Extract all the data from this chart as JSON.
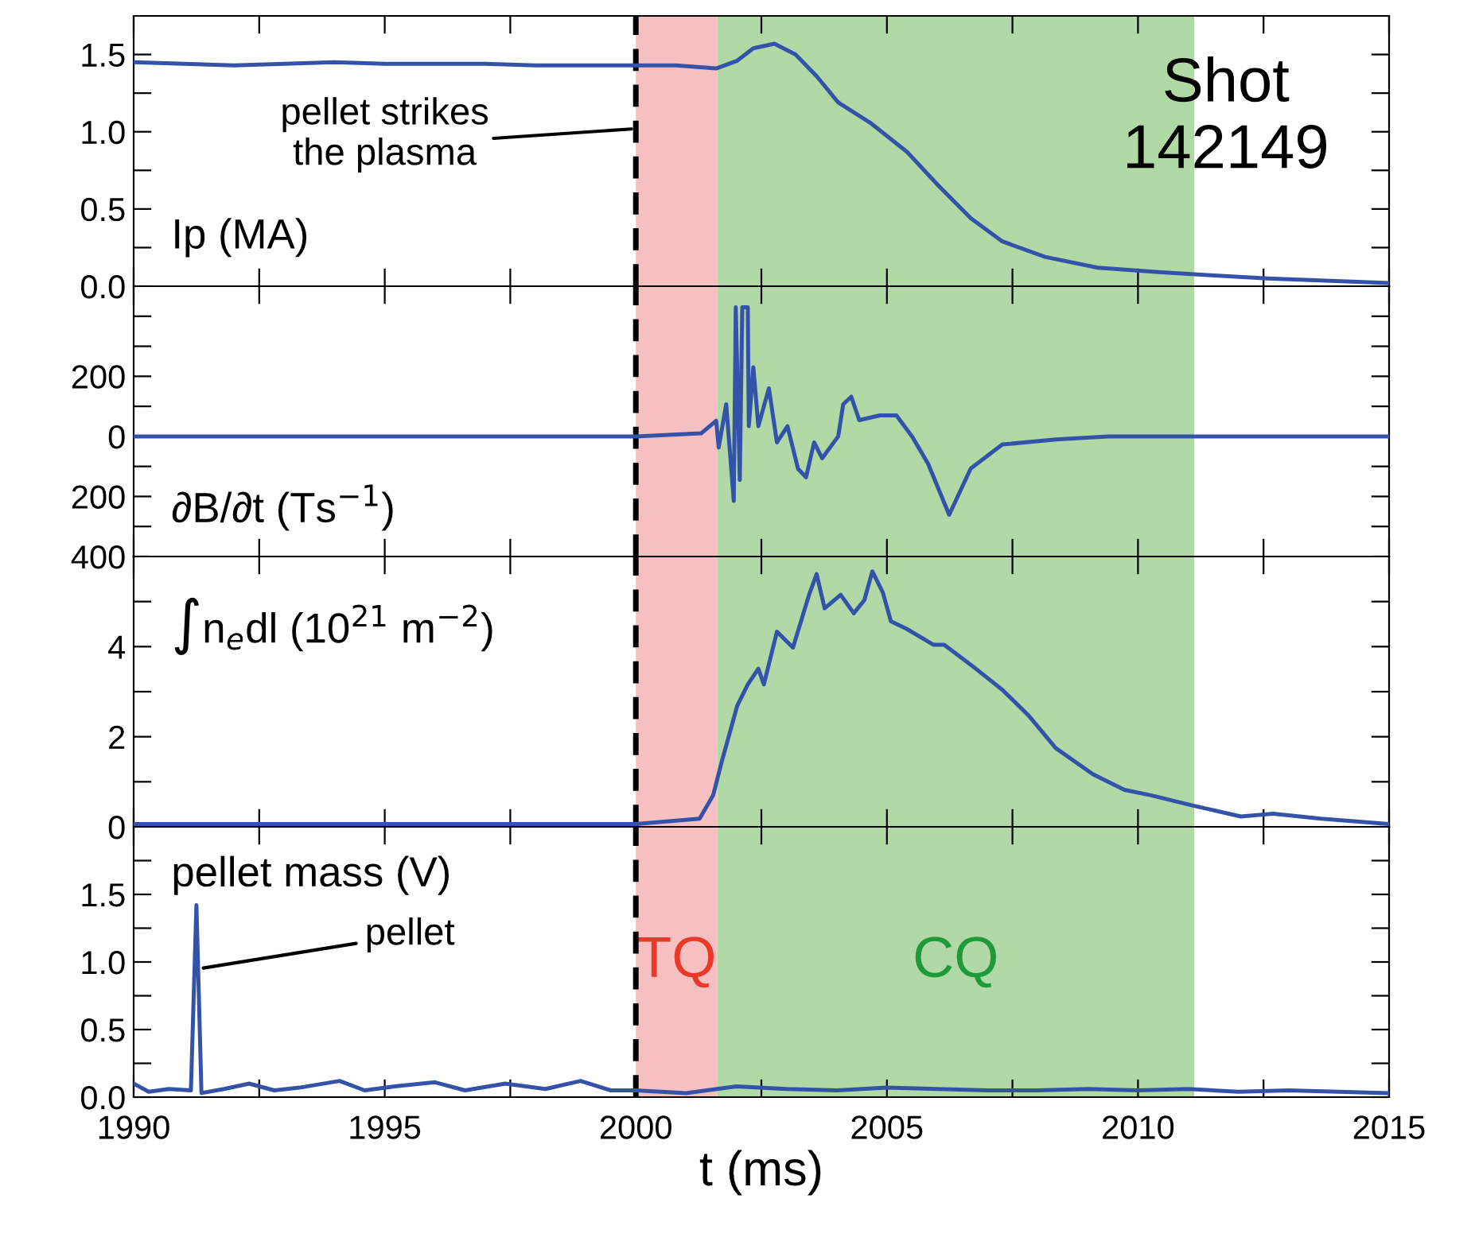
{
  "chart_data": [
    {
      "type": "line",
      "ylabel": "Ip (MA)",
      "xlim": [
        1990,
        2015
      ],
      "ylim": [
        0,
        1.75
      ],
      "xticks": [
        1990,
        {
          "value": 1992.5,
          "label": null
        },
        1995,
        {
          "value": 1997.5,
          "label": null
        },
        2000,
        {
          "value": 2002.5,
          "label": null
        },
        2005,
        {
          "value": 2007.5,
          "label": null
        },
        2010,
        {
          "value": 2012.5,
          "label": null
        },
        2015
      ],
      "yticks": [
        {
          "value": 0,
          "label": "0.0"
        },
        {
          "value": 0.25,
          "label": null
        },
        {
          "value": 0.5,
          "label": "0.5"
        },
        {
          "value": 0.75,
          "label": null
        },
        {
          "value": 1.0,
          "label": "1.0"
        },
        {
          "value": 1.25,
          "label": null
        },
        {
          "value": 1.5,
          "label": "1.5"
        }
      ],
      "tick_labels": "y",
      "grid": false,
      "legend": false,
      "series": [
        {
          "color": "#3453a8",
          "x": [
            1990,
            1991,
            1992,
            1993,
            1994,
            1995,
            1996,
            1997,
            1998,
            1999,
            2000,
            2000.8,
            2001.6,
            2002.02,
            2002.34,
            2002.76,
            2003.18,
            2003.6,
            2004.03,
            2004.66,
            2005.4,
            2006.03,
            2006.67,
            2007.3,
            2008.15,
            2009.2,
            2010.47,
            2011.52,
            2012.58,
            2015
          ],
          "values": [
            1.45,
            1.44,
            1.43,
            1.44,
            1.45,
            1.44,
            1.44,
            1.44,
            1.43,
            1.43,
            1.43,
            1.43,
            1.41,
            1.46,
            1.54,
            1.57,
            1.5,
            1.36,
            1.19,
            1.06,
            0.87,
            0.65,
            0.44,
            0.29,
            0.19,
            0.12,
            0.09,
            0.07,
            0.05,
            0.02
          ]
        }
      ],
      "ref_lines": [
        {
          "axis": "x",
          "value": 2000,
          "color": "#000000",
          "line_style": "dashed"
        }
      ],
      "bands": [
        {
          "axis": "x",
          "from": 2000,
          "to": 2001.62,
          "color": "#f6c0c0"
        },
        {
          "axis": "x",
          "from": 2001.62,
          "to": 2011.12,
          "color": "#b1d9a6"
        }
      ],
      "annotations": [
        {
          "text": "pellet strikes\nthe plasma",
          "x": 2000,
          "y": 1.02
        },
        "Shot\n142149"
      ]
    },
    {
      "type": "line",
      "ylabel": "∂B/∂t (Ts$^{−1}$)",
      "xlim": [
        1990,
        2015
      ],
      "ylim": [
        -400,
        500
      ],
      "xticks": [
        1990,
        {
          "value": 1992.5,
          "label": null
        },
        1995,
        {
          "value": 1997.5,
          "label": null
        },
        2000,
        {
          "value": 2002.5,
          "label": null
        },
        2005,
        {
          "value": 2007.5,
          "label": null
        },
        2010,
        {
          "value": 2012.5,
          "label": null
        },
        2015
      ],
      "yticks": [
        {
          "value": -400,
          "label": "400"
        },
        {
          "value": -300,
          "label": null
        },
        {
          "value": -200,
          "label": "200"
        },
        {
          "value": -100,
          "label": null
        },
        0,
        {
          "value": 100,
          "label": null
        },
        200,
        {
          "value": 300,
          "label": null
        },
        {
          "value": 400,
          "label": null
        }
      ],
      "tick_labels": "y",
      "grid": false,
      "legend": false,
      "series": [
        {
          "color": "#3453a8",
          "x": [
            1990,
            1995,
            2000,
            2001.3,
            2001.6,
            2001.65,
            2001.8,
            2001.95,
            2001.99,
            2002.07,
            2002.12,
            2002.23,
            2002.25,
            2002.34,
            2002.44,
            2002.65,
            2002.81,
            2003.02,
            2003.23,
            2003.39,
            2003.55,
            2003.71,
            2004.03,
            2004.13,
            2004.29,
            2004.45,
            2004.86,
            2005.19,
            2005.5,
            2005.82,
            2006.24,
            2006.67,
            2007.3,
            2008.37,
            2009.4,
            2015
          ],
          "values": [
            0,
            0,
            0,
            10,
            52,
            -37,
            107,
            -215,
            430,
            -145,
            430,
            430,
            34,
            230,
            34,
            160,
            -20,
            34,
            -108,
            -136,
            -20,
            -73,
            0,
            107,
            132,
            54,
            70,
            70,
            0,
            -91,
            -261,
            -107,
            -27,
            -10,
            0,
            0
          ]
        }
      ],
      "ref_lines": [
        {
          "axis": "x",
          "value": 2000,
          "color": "#000000",
          "line_style": "dashed"
        }
      ],
      "bands": [
        {
          "axis": "x",
          "from": 2000,
          "to": 2001.62,
          "color": "#f6c0c0"
        },
        {
          "axis": "x",
          "from": 2001.62,
          "to": 2011.12,
          "color": "#b1d9a6"
        }
      ]
    },
    {
      "type": "line",
      "ylabel": "∫n$_{e}$dl (10$^{21}$ m$^{−2}$)",
      "xlim": [
        1990,
        2015
      ],
      "ylim": [
        0,
        6
      ],
      "xticks": [
        1990,
        {
          "value": 1992.5,
          "label": null
        },
        1995,
        {
          "value": 1997.5,
          "label": null
        },
        2000,
        {
          "value": 2002.5,
          "label": null
        },
        2005,
        {
          "value": 2007.5,
          "label": null
        },
        2010,
        {
          "value": 2012.5,
          "label": null
        },
        2015
      ],
      "yticks": [
        0,
        {
          "value": 1,
          "label": null
        },
        2,
        {
          "value": 3,
          "label": null
        },
        4,
        {
          "value": 5,
          "label": null
        }
      ],
      "tick_labels": "y",
      "grid": false,
      "legend": false,
      "series": [
        {
          "color": "#3453a8",
          "x": [
            1990,
            1995,
            2000,
            2001.27,
            2001.54,
            2001.7,
            2002.02,
            2002.23,
            2002.44,
            2002.55,
            2002.81,
            2003.13,
            2003.45,
            2003.6,
            2003.76,
            2004.08,
            2004.34,
            2004.55,
            2004.71,
            2004.92,
            2005.08,
            2005.4,
            2005.93,
            2006.14,
            2006.77,
            2007.3,
            2007.83,
            2008.36,
            2009.1,
            2009.73,
            2010.26,
            2011.1,
            2012.05,
            2012.69,
            2013.64,
            2015
          ],
          "values": [
            0.06,
            0.06,
            0.06,
            0.18,
            0.7,
            1.4,
            2.69,
            3.16,
            3.51,
            3.16,
            4.33,
            3.98,
            5.15,
            5.61,
            4.85,
            5.15,
            4.74,
            5.03,
            5.67,
            5.2,
            4.56,
            4.39,
            4.04,
            4.04,
            3.51,
            3.04,
            2.46,
            1.75,
            1.17,
            0.82,
            0.7,
            0.47,
            0.23,
            0.29,
            0.18,
            0.06
          ]
        }
      ],
      "ref_lines": [
        {
          "axis": "x",
          "value": 2000,
          "color": "#000000",
          "line_style": "dashed"
        }
      ],
      "bands": [
        {
          "axis": "x",
          "from": 2000,
          "to": 2001.62,
          "color": "#f6c0c0"
        },
        {
          "axis": "x",
          "from": 2001.62,
          "to": 2011.12,
          "color": "#b1d9a6"
        }
      ]
    },
    {
      "type": "line",
      "ylabel": "pellet mass (V)",
      "xlabel": "t (ms)",
      "xlim": [
        1990,
        2015
      ],
      "ylim": [
        0,
        2
      ],
      "xticks": [
        1990,
        {
          "value": 1992.5,
          "label": null
        },
        1995,
        {
          "value": 1997.5,
          "label": null
        },
        2000,
        {
          "value": 2002.5,
          "label": null
        },
        2005,
        {
          "value": 2007.5,
          "label": null
        },
        2010,
        {
          "value": 2012.5,
          "label": null
        },
        2015
      ],
      "yticks": [
        {
          "value": 0,
          "label": "0.0"
        },
        {
          "value": 0.25,
          "label": null
        },
        {
          "value": 0.5,
          "label": "0.5"
        },
        {
          "value": 0.75,
          "label": null
        },
        {
          "value": 1.0,
          "label": "1.0"
        },
        {
          "value": 1.25,
          "label": null
        },
        {
          "value": 1.5,
          "label": "1.5"
        },
        {
          "value": 1.75,
          "label": null
        }
      ],
      "grid": false,
      "legend": false,
      "series": [
        {
          "color": "#3453a8",
          "x": [
            1990,
            1990.3,
            1990.7,
            1991.14,
            1991.25,
            1991.35,
            1991.8,
            1992.3,
            1992.8,
            1993.3,
            1994.1,
            1994.6,
            1995.2,
            1996.0,
            1996.6,
            1997.4,
            1998.2,
            1998.9,
            1999.5,
            2000,
            2001,
            2002,
            2003,
            2004,
            2005,
            2006,
            2007,
            2008,
            2009,
            2010,
            2011,
            2012,
            2013,
            2014,
            2015
          ],
          "values": [
            0.1,
            0.04,
            0.06,
            0.05,
            1.42,
            0.03,
            0.06,
            0.1,
            0.05,
            0.07,
            0.12,
            0.05,
            0.08,
            0.11,
            0.05,
            0.1,
            0.06,
            0.12,
            0.05,
            0.05,
            0.03,
            0.08,
            0.06,
            0.05,
            0.07,
            0.06,
            0.05,
            0.05,
            0.06,
            0.05,
            0.06,
            0.04,
            0.05,
            0.04,
            0.03
          ]
        }
      ],
      "ref_lines": [
        {
          "axis": "x",
          "value": 2000,
          "color": "#000000",
          "line_style": "dashed"
        }
      ],
      "bands": [
        {
          "axis": "x",
          "from": 2000,
          "to": 2001.62,
          "color": "#f6c0c0",
          "label": "TQ"
        },
        {
          "axis": "x",
          "from": 2001.62,
          "to": 2011.12,
          "color": "#b1d9a6",
          "label": "CQ"
        }
      ],
      "annotations": [
        {
          "text": "pellet",
          "x": 1991.3,
          "y": 0.95
        }
      ]
    }
  ]
}
